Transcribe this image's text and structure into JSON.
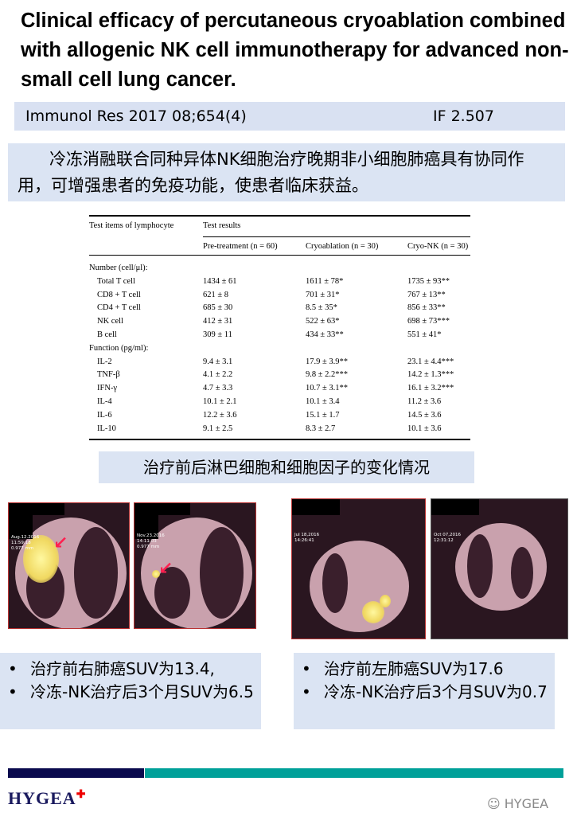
{
  "title": "Clinical efficacy of percutaneous cryoablation combined with allogenic NK cell immunotherapy for advanced non-small cell lung cancer.",
  "citation": {
    "journal": "Immunol Res 2017 08;654(4)",
    "impact_factor": "IF 2.507"
  },
  "summary": "冷冻消融联合同种异体NK细胞治疗晚期非小细胞肺癌具有协同作用，可增强患者的免疫功能，使患者临床获益。",
  "table": {
    "header_col": "Test items of lymphocyte",
    "header_group": "Test results",
    "columns": [
      "Pre-treatment (n = 60)",
      "Cryoablation (n = 30)",
      "Cryo-NK (n = 30)"
    ],
    "rows": [
      {
        "label": "Number (cell/μl):",
        "section": true,
        "values": [
          "",
          "",
          ""
        ]
      },
      {
        "label": "Total T cell",
        "values": [
          "1434 ± 61",
          "1611 ± 78*",
          "1735 ± 93**"
        ]
      },
      {
        "label": "CD8 + T cell",
        "values": [
          "621 ± 8",
          "701 ± 31*",
          "767 ± 13**"
        ]
      },
      {
        "label": "CD4 + T cell",
        "values": [
          "685 ± 30",
          "8.5 ± 35*",
          "856 ± 33**"
        ]
      },
      {
        "label": "NK cell",
        "values": [
          "412 ± 31",
          "522 ± 63*",
          "698 ± 73***"
        ]
      },
      {
        "label": "B cell",
        "values": [
          "309 ± 11",
          "434 ± 33**",
          "551 ± 41*"
        ]
      },
      {
        "label": "Function (pg/ml):",
        "section": true,
        "values": [
          "",
          "",
          ""
        ]
      },
      {
        "label": "IL-2",
        "values": [
          "9.4 ± 3.1",
          "17.9 ± 3.9**",
          "23.1 ± 4.4***"
        ]
      },
      {
        "label": "TNF-β",
        "values": [
          "4.1 ± 2.2",
          "9.8 ± 2.2***",
          "14.2 ± 1.3***"
        ]
      },
      {
        "label": "IFN-γ",
        "values": [
          "4.7 ± 3.3",
          "10.7 ± 3.1**",
          "16.1 ± 3.2***"
        ]
      },
      {
        "label": "IL-4",
        "values": [
          "10.1 ± 2.1",
          "10.1 ± 3.4",
          "11.2 ± 3.6"
        ]
      },
      {
        "label": "IL-6",
        "values": [
          "12.2 ± 3.6",
          "15.1 ± 1.7",
          "14.5 ± 3.6"
        ]
      },
      {
        "label": "IL-10",
        "values": [
          "9.1 ± 2.5",
          "8.3 ± 2.7",
          "10.1 ± 3.6"
        ]
      }
    ]
  },
  "caption": "治疗前后淋巴细胞和细胞因子的变化情况",
  "scans": [
    {
      "stamp": "Aug.12.2016\n11:59:18\n0.977 mm"
    },
    {
      "stamp": "Nov.23.2016\n14:11:03\n0.977 mm"
    },
    {
      "stamp": "Jul 18,2016\n14:26:41"
    },
    {
      "stamp": "Oct 07,2016\n12:31:12"
    }
  ],
  "bullets_left": [
    "治疗前右肺癌SUV为13.4,",
    "冷冻-NK治疗后3个月SUV为6.5"
  ],
  "bullets_right": [
    "治疗前左肺癌SUV为17.6",
    "冷冻-NK治疗后3个月SUV为0.7"
  ],
  "footer": {
    "logo": "HYGEA",
    "watermark": "HYGEA"
  },
  "colors": {
    "navy": "#0a0a4e",
    "teal": "#00a099",
    "panel": "#dbe4f3"
  }
}
